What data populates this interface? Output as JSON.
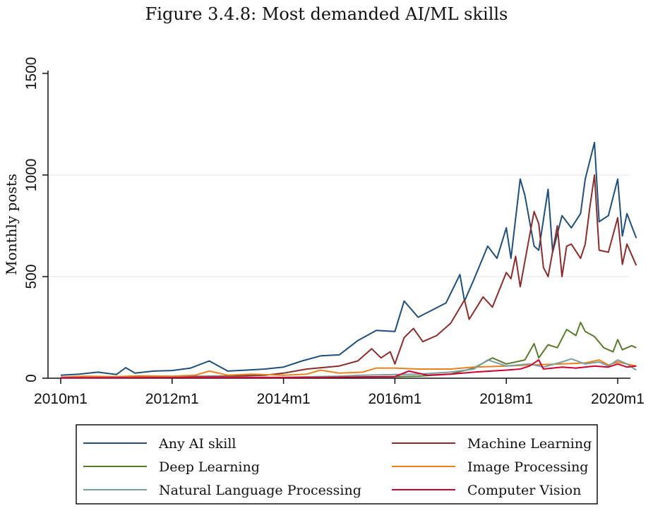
{
  "title": "Figure 3.4.8: Most demanded AI/ML skills",
  "chart_data": {
    "type": "line",
    "ylabel": "Monthly posts",
    "xlabel": "",
    "x_ticks": [
      "2010m1",
      "2012m1",
      "2014m1",
      "2016m1",
      "2018m1",
      "2020m1"
    ],
    "y_ticks": [
      0,
      500,
      1000,
      1500
    ],
    "xlim": [
      "2010m1",
      "2020m1"
    ],
    "ylim": [
      0,
      1500
    ],
    "grid": "horizontal",
    "legend_position": "bottom",
    "series": [
      {
        "name": "Any AI skill",
        "color": "#1f4e79",
        "points": [
          [
            "2010m1",
            15
          ],
          [
            "2010m5",
            20
          ],
          [
            "2010m9",
            30
          ],
          [
            "2011m1",
            18
          ],
          [
            "2011m3",
            52
          ],
          [
            "2011m5",
            25
          ],
          [
            "2011m9",
            35
          ],
          [
            "2012m1",
            38
          ],
          [
            "2012m5",
            50
          ],
          [
            "2012m9",
            85
          ],
          [
            "2013m1",
            35
          ],
          [
            "2013m5",
            40
          ],
          [
            "2013m9",
            45
          ],
          [
            "2014m1",
            55
          ],
          [
            "2014m5",
            85
          ],
          [
            "2014m9",
            110
          ],
          [
            "2015m1",
            115
          ],
          [
            "2015m5",
            185
          ],
          [
            "2015m9",
            235
          ],
          [
            "2016m1",
            230
          ],
          [
            "2016m3",
            380
          ],
          [
            "2016m6",
            300
          ],
          [
            "2016m9",
            335
          ],
          [
            "2016m12",
            370
          ],
          [
            "2017m3",
            510
          ],
          [
            "2017m4",
            380
          ],
          [
            "2017m6",
            485
          ],
          [
            "2017m9",
            650
          ],
          [
            "2017m11",
            590
          ],
          [
            "2018m1",
            740
          ],
          [
            "2018m2",
            590
          ],
          [
            "2018m4",
            980
          ],
          [
            "2018m5",
            900
          ],
          [
            "2018m7",
            650
          ],
          [
            "2018m8",
            630
          ],
          [
            "2018m10",
            930
          ],
          [
            "2018m11",
            620
          ],
          [
            "2019m1",
            800
          ],
          [
            "2019m3",
            740
          ],
          [
            "2019m5",
            810
          ],
          [
            "2019m6",
            980
          ],
          [
            "2019m8",
            1160
          ],
          [
            "2019m9",
            770
          ],
          [
            "2019m11",
            800
          ],
          [
            "2020m1",
            980
          ],
          [
            "2020m2",
            700
          ],
          [
            "2020m3",
            810
          ],
          [
            "2020m5",
            690
          ]
        ]
      },
      {
        "name": "Machine Learning",
        "color": "#8b2c2c",
        "points": [
          [
            "2010m1",
            5
          ],
          [
            "2011m1",
            5
          ],
          [
            "2012m1",
            8
          ],
          [
            "2013m1",
            10
          ],
          [
            "2013m9",
            15
          ],
          [
            "2014m1",
            25
          ],
          [
            "2014m6",
            45
          ],
          [
            "2015m1",
            60
          ],
          [
            "2015m5",
            85
          ],
          [
            "2015m8",
            145
          ],
          [
            "2015m10",
            100
          ],
          [
            "2015m12",
            130
          ],
          [
            "2016m1",
            70
          ],
          [
            "2016m3",
            200
          ],
          [
            "2016m5",
            245
          ],
          [
            "2016m7",
            180
          ],
          [
            "2016m10",
            210
          ],
          [
            "2017m1",
            270
          ],
          [
            "2017m4",
            385
          ],
          [
            "2017m5",
            290
          ],
          [
            "2017m8",
            400
          ],
          [
            "2017m10",
            350
          ],
          [
            "2018m1",
            520
          ],
          [
            "2018m2",
            490
          ],
          [
            "2018m3",
            600
          ],
          [
            "2018m4",
            450
          ],
          [
            "2018m6",
            700
          ],
          [
            "2018m7",
            820
          ],
          [
            "2018m8",
            760
          ],
          [
            "2018m9",
            545
          ],
          [
            "2018m10",
            500
          ],
          [
            "2018m12",
            750
          ],
          [
            "2019m1",
            500
          ],
          [
            "2019m2",
            650
          ],
          [
            "2019m3",
            660
          ],
          [
            "2019m5",
            590
          ],
          [
            "2019m6",
            660
          ],
          [
            "2019m7",
            840
          ],
          [
            "2019m8",
            1000
          ],
          [
            "2019m9",
            630
          ],
          [
            "2019m11",
            620
          ],
          [
            "2020m1",
            790
          ],
          [
            "2020m2",
            560
          ],
          [
            "2020m3",
            660
          ],
          [
            "2020m5",
            555
          ]
        ]
      },
      {
        "name": "Deep Learning",
        "color": "#5a7a2e",
        "points": [
          [
            "2010m1",
            2
          ],
          [
            "2012m1",
            3
          ],
          [
            "2014m1",
            3
          ],
          [
            "2015m1",
            5
          ],
          [
            "2016m1",
            8
          ],
          [
            "2016m6",
            10
          ],
          [
            "2017m1",
            20
          ],
          [
            "2017m6",
            50
          ],
          [
            "2017m10",
            100
          ],
          [
            "2018m1",
            70
          ],
          [
            "2018m5",
            90
          ],
          [
            "2018m7",
            170
          ],
          [
            "2018m8",
            100
          ],
          [
            "2018m10",
            165
          ],
          [
            "2018m12",
            150
          ],
          [
            "2019m2",
            240
          ],
          [
            "2019m4",
            210
          ],
          [
            "2019m5",
            275
          ],
          [
            "2019m6",
            230
          ],
          [
            "2019m8",
            205
          ],
          [
            "2019m10",
            150
          ],
          [
            "2019m12",
            130
          ],
          [
            "2020m1",
            190
          ],
          [
            "2020m2",
            140
          ],
          [
            "2020m4",
            160
          ],
          [
            "2020m5",
            150
          ]
        ]
      },
      {
        "name": "Image Processing",
        "color": "#e8821e",
        "points": [
          [
            "2010m1",
            5
          ],
          [
            "2010m6",
            10
          ],
          [
            "2011m1",
            8
          ],
          [
            "2011m6",
            12
          ],
          [
            "2012m1",
            10
          ],
          [
            "2012m6",
            15
          ],
          [
            "2012m9",
            35
          ],
          [
            "2013m1",
            15
          ],
          [
            "2013m6",
            20
          ],
          [
            "2014m1",
            15
          ],
          [
            "2014m6",
            20
          ],
          [
            "2014m9",
            40
          ],
          [
            "2015m1",
            25
          ],
          [
            "2015m6",
            30
          ],
          [
            "2015m9",
            50
          ],
          [
            "2016m1",
            50
          ],
          [
            "2016m6",
            45
          ],
          [
            "2017m1",
            45
          ],
          [
            "2017m6",
            55
          ],
          [
            "2018m1",
            60
          ],
          [
            "2018m6",
            65
          ],
          [
            "2019m1",
            70
          ],
          [
            "2019m6",
            75
          ],
          [
            "2019m9",
            90
          ],
          [
            "2019m11",
            65
          ],
          [
            "2020m1",
            80
          ],
          [
            "2020m5",
            60
          ]
        ]
      },
      {
        "name": "Natural Language Processing",
        "color": "#7a9e9f",
        "points": [
          [
            "2010m1",
            3
          ],
          [
            "2012m1",
            5
          ],
          [
            "2014m1",
            5
          ],
          [
            "2015m1",
            10
          ],
          [
            "2015m6",
            15
          ],
          [
            "2016m1",
            18
          ],
          [
            "2016m6",
            20
          ],
          [
            "2017m1",
            30
          ],
          [
            "2017m6",
            45
          ],
          [
            "2017m9",
            90
          ],
          [
            "2018m1",
            60
          ],
          [
            "2018m6",
            70
          ],
          [
            "2018m9",
            55
          ],
          [
            "2019m1",
            80
          ],
          [
            "2019m3",
            95
          ],
          [
            "2019m6",
            70
          ],
          [
            "2019m9",
            80
          ],
          [
            "2019m11",
            60
          ],
          [
            "2020m1",
            90
          ],
          [
            "2020m3",
            70
          ],
          [
            "2020m5",
            40
          ]
        ]
      },
      {
        "name": "Computer Vision",
        "color": "#cc0033",
        "points": [
          [
            "2010m1",
            2
          ],
          [
            "2012m1",
            3
          ],
          [
            "2014m1",
            3
          ],
          [
            "2015m1",
            5
          ],
          [
            "2016m1",
            8
          ],
          [
            "2016m4",
            35
          ],
          [
            "2016m8",
            15
          ],
          [
            "2017m1",
            20
          ],
          [
            "2017m6",
            30
          ],
          [
            "2018m1",
            40
          ],
          [
            "2018m4",
            45
          ],
          [
            "2018m6",
            60
          ],
          [
            "2018m8",
            90
          ],
          [
            "2018m9",
            45
          ],
          [
            "2019m1",
            55
          ],
          [
            "2019m4",
            50
          ],
          [
            "2019m8",
            60
          ],
          [
            "2019m11",
            55
          ],
          [
            "2020m1",
            70
          ],
          [
            "2020m3",
            55
          ],
          [
            "2020m5",
            60
          ]
        ]
      }
    ]
  }
}
